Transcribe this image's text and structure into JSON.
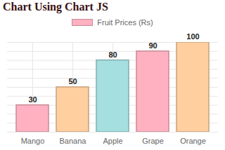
{
  "chart_data": {
    "type": "bar",
    "title": "Chart Using Chart JS",
    "categories": [
      "Mango",
      "Banana",
      "Apple",
      "Grape",
      "Orange"
    ],
    "series": [
      {
        "name": "Fruit Prices (Rs)",
        "values": [
          30,
          50,
          80,
          90,
          100
        ],
        "colors": [
          "#ffb1c1",
          "#ffcf9f",
          "#a5dfdf",
          "#ffb1c1",
          "#ffcf9f"
        ]
      }
    ],
    "ylim": [
      0,
      100
    ],
    "yticks": [
      0,
      10,
      20,
      30,
      40,
      50,
      60,
      70,
      80,
      90,
      100
    ],
    "grid": true,
    "legend": "top",
    "data_labels": true,
    "tick_labels": "x"
  }
}
